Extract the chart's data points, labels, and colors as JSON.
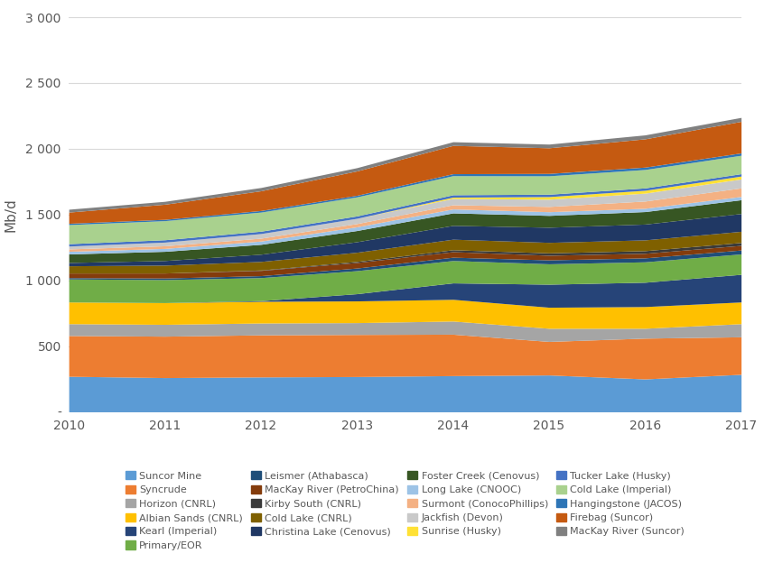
{
  "ylabel": "Mb/d",
  "years": [
    2010,
    2011,
    2012,
    2013,
    2014,
    2015,
    2016,
    2017
  ],
  "ylim": [
    0,
    3000
  ],
  "yticks": [
    0,
    500,
    1000,
    1500,
    2000,
    2500,
    3000
  ],
  "ytick_labels": [
    "-",
    "500",
    "1 000",
    "1 500",
    "2 000",
    "2 500",
    "3 000"
  ],
  "series": [
    {
      "name": "Suncor Mine",
      "color": "#5B9BD5",
      "values": [
        270,
        260,
        265,
        268,
        275,
        280,
        250,
        285
      ]
    },
    {
      "name": "Syncrude",
      "color": "#ED7D31",
      "values": [
        310,
        315,
        320,
        320,
        315,
        255,
        310,
        285
      ]
    },
    {
      "name": "Horizon (CNRL)",
      "color": "#A5A5A5",
      "values": [
        90,
        90,
        90,
        90,
        100,
        100,
        75,
        100
      ]
    },
    {
      "name": "Albian Sands (CNRL)",
      "color": "#FFC000",
      "values": [
        165,
        165,
        165,
        165,
        165,
        160,
        165,
        165
      ]
    },
    {
      "name": "Kearl (Imperial)",
      "color": "#264478",
      "values": [
        0,
        0,
        5,
        55,
        125,
        175,
        185,
        210
      ]
    },
    {
      "name": "Primary/EOR",
      "color": "#70AD47",
      "values": [
        175,
        175,
        175,
        175,
        170,
        155,
        155,
        155
      ]
    },
    {
      "name": "Leismer (Athabasca)",
      "color": "#1F4E79",
      "values": [
        10,
        12,
        15,
        20,
        25,
        30,
        30,
        30
      ]
    },
    {
      "name": "MacKay River (PetroChina)",
      "color": "#843C0C",
      "values": [
        35,
        38,
        40,
        42,
        42,
        35,
        35,
        35
      ]
    },
    {
      "name": "Kirby South (CNRL)",
      "color": "#3A3A3A",
      "values": [
        0,
        0,
        3,
        8,
        15,
        18,
        20,
        22
      ]
    },
    {
      "name": "Cold Lake (CNRL)",
      "color": "#7F6000",
      "values": [
        55,
        60,
        65,
        70,
        80,
        80,
        82,
        85
      ]
    },
    {
      "name": "Christina Lake (Cenovus)",
      "color": "#203864",
      "values": [
        25,
        35,
        55,
        80,
        105,
        115,
        120,
        135
      ]
    },
    {
      "name": "Foster Creek (Cenovus)",
      "color": "#375623",
      "values": [
        65,
        70,
        75,
        85,
        95,
        90,
        95,
        105
      ]
    },
    {
      "name": "Long Lake (CNOOC)",
      "color": "#9DC3E6",
      "values": [
        20,
        22,
        25,
        28,
        30,
        28,
        25,
        25
      ]
    },
    {
      "name": "Surmont (ConocoPhillips)",
      "color": "#F4B183",
      "values": [
        18,
        20,
        22,
        25,
        32,
        40,
        55,
        65
      ]
    },
    {
      "name": "Jackfish (Devon)",
      "color": "#C9C9C9",
      "values": [
        22,
        28,
        35,
        40,
        48,
        55,
        60,
        68
      ]
    },
    {
      "name": "Sunrise (Husky)",
      "color": "#FFE135",
      "values": [
        0,
        0,
        0,
        0,
        10,
        20,
        22,
        22
      ]
    },
    {
      "name": "Tucker Lake (Husky)",
      "color": "#4472C4",
      "values": [
        18,
        18,
        18,
        18,
        18,
        18,
        18,
        18
      ]
    },
    {
      "name": "Cold Lake (Imperial)",
      "color": "#A9D18E",
      "values": [
        145,
        145,
        145,
        145,
        145,
        140,
        140,
        140
      ]
    },
    {
      "name": "Hangingstone (JACOS)",
      "color": "#2E75B6",
      "values": [
        10,
        10,
        12,
        12,
        15,
        18,
        18,
        18
      ]
    },
    {
      "name": "Firebag (Suncor)",
      "color": "#C55A11",
      "values": [
        85,
        115,
        150,
        185,
        215,
        195,
        215,
        240
      ]
    },
    {
      "name": "MacKay River (Suncor)",
      "color": "#808080",
      "values": [
        22,
        22,
        25,
        25,
        28,
        28,
        30,
        30
      ]
    }
  ],
  "legend_ncol": 4,
  "background_color": "#FFFFFF",
  "grid_color": "#D9D9D9"
}
